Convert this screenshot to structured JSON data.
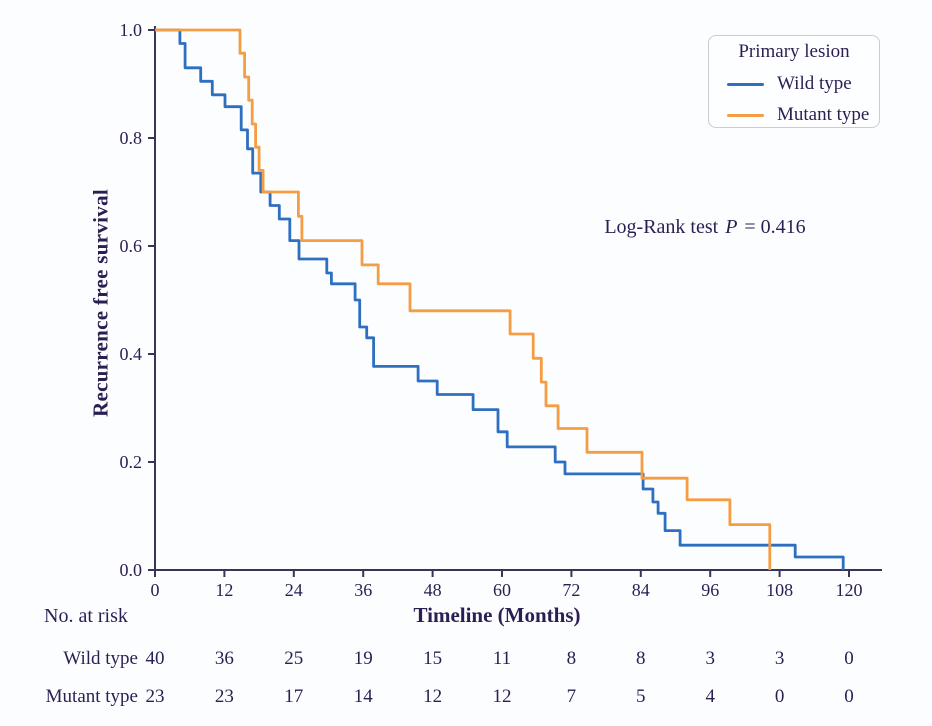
{
  "figure": {
    "background": "#fbfdff",
    "text_color": "#2b1e52",
    "axis_color": "#3a3359"
  },
  "chart_data": {
    "type": "line",
    "subtype": "kaplan-meier-step-survival",
    "title": "",
    "xlabel": "Timeline (Months)",
    "ylabel": "Recurrence free survival",
    "xlim": [
      0,
      120
    ],
    "ylim": [
      0.0,
      1.0
    ],
    "xticks": [
      0,
      12,
      24,
      36,
      48,
      60,
      72,
      84,
      96,
      108,
      120
    ],
    "yticks": [
      0.0,
      0.2,
      0.4,
      0.6,
      0.8,
      1.0
    ],
    "ytick_labels": [
      "0.0",
      "0.2",
      "0.4",
      "0.6",
      "0.8",
      "1.0"
    ],
    "grid": false,
    "annotation": {
      "prefix": "Log-Rank test",
      "stat": "P",
      "value": "= 0.416"
    },
    "legend": {
      "title": "Primary lesion",
      "position": "top-right",
      "entries": [
        {
          "label": "Wild type",
          "color": "#2e6fc0"
        },
        {
          "label": "Mutant type",
          "color": "#f59d42"
        }
      ]
    },
    "series": [
      {
        "name": "Wild type",
        "color": "#2e6fc0",
        "points": [
          [
            0,
            1.0
          ],
          [
            4.3,
            0.975
          ],
          [
            5.2,
            0.93
          ],
          [
            7.9,
            0.905
          ],
          [
            9.9,
            0.88
          ],
          [
            12.1,
            0.858
          ],
          [
            14.9,
            0.815
          ],
          [
            16.0,
            0.78
          ],
          [
            16.9,
            0.735
          ],
          [
            18.3,
            0.7
          ],
          [
            19.9,
            0.675
          ],
          [
            21.5,
            0.65
          ],
          [
            23.3,
            0.61
          ],
          [
            24.9,
            0.576
          ],
          [
            29.7,
            0.55
          ],
          [
            30.5,
            0.53
          ],
          [
            34.6,
            0.5
          ],
          [
            35.4,
            0.45
          ],
          [
            36.6,
            0.43
          ],
          [
            37.8,
            0.377
          ],
          [
            45.5,
            0.35
          ],
          [
            48.8,
            0.325
          ],
          [
            55.0,
            0.297
          ],
          [
            59.3,
            0.256
          ],
          [
            60.9,
            0.228
          ],
          [
            69.2,
            0.2
          ],
          [
            70.9,
            0.178
          ],
          [
            84.4,
            0.15
          ],
          [
            86.1,
            0.126
          ],
          [
            87.0,
            0.105
          ],
          [
            88.2,
            0.073
          ],
          [
            90.8,
            0.046
          ],
          [
            110.7,
            0.024
          ],
          [
            119.0,
            0.0
          ]
        ]
      },
      {
        "name": "Mutant type",
        "color": "#f59d42",
        "points": [
          [
            0,
            1.0
          ],
          [
            14.7,
            0.957
          ],
          [
            15.5,
            0.913
          ],
          [
            16.2,
            0.87
          ],
          [
            16.8,
            0.826
          ],
          [
            17.4,
            0.783
          ],
          [
            18.0,
            0.74
          ],
          [
            18.7,
            0.7
          ],
          [
            24.8,
            0.655
          ],
          [
            25.4,
            0.61
          ],
          [
            35.8,
            0.565
          ],
          [
            38.6,
            0.53
          ],
          [
            44.1,
            0.48
          ],
          [
            61.4,
            0.437
          ],
          [
            65.4,
            0.392
          ],
          [
            66.8,
            0.348
          ],
          [
            67.6,
            0.304
          ],
          [
            69.7,
            0.262
          ],
          [
            74.7,
            0.218
          ],
          [
            84.2,
            0.17
          ],
          [
            92.0,
            0.13
          ],
          [
            99.4,
            0.084
          ],
          [
            106.3,
            0.0
          ]
        ]
      }
    ],
    "risk_table": {
      "title": "No. at risk",
      "times": [
        0,
        12,
        24,
        36,
        48,
        60,
        72,
        84,
        96,
        108,
        120
      ],
      "rows": [
        {
          "label": "Wild type",
          "counts": [
            40,
            36,
            25,
            19,
            15,
            11,
            8,
            8,
            3,
            3,
            0
          ]
        },
        {
          "label": "Mutant type",
          "counts": [
            23,
            23,
            17,
            14,
            12,
            12,
            7,
            5,
            4,
            0,
            0
          ]
        }
      ]
    }
  }
}
